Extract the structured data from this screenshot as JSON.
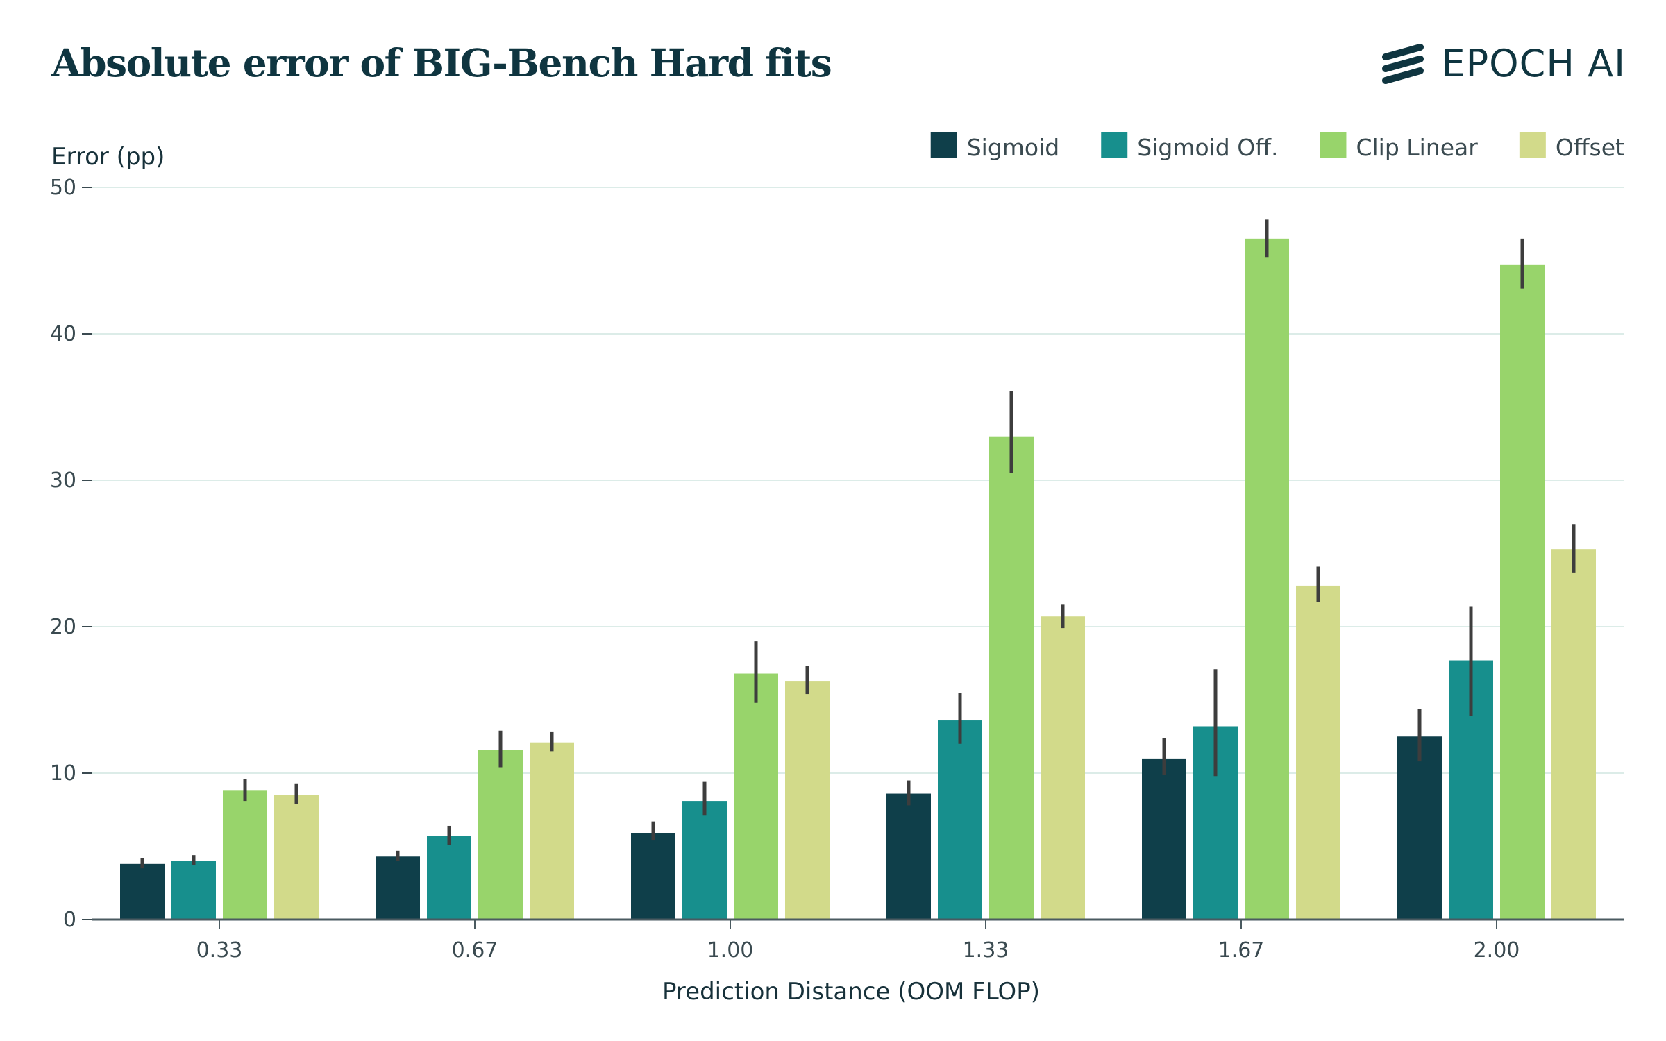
{
  "title": "Absolute error of BIG-Bench Hard fits",
  "brand": {
    "name": "EPOCH AI",
    "icon": "epoch-stripes-logo",
    "color": "#0f3540"
  },
  "chart_data": {
    "type": "bar",
    "title": "Absolute error of BIG-Bench Hard fits",
    "xlabel": "Prediction Distance (OOM FLOP)",
    "ylabel": "Error (pp)",
    "ylim": [
      0,
      50
    ],
    "yticks": [
      "0",
      "10",
      "20",
      "30",
      "40",
      "50"
    ],
    "categories": [
      "0.33",
      "0.67",
      "1.00",
      "1.33",
      "1.67",
      "2.00"
    ],
    "grid": true,
    "legend_position": "top-right",
    "series": [
      {
        "name": "Sigmoid",
        "color": "#0f3f4a",
        "values": [
          3.8,
          4.3,
          5.9,
          8.6,
          11.0,
          12.5
        ],
        "err_low": [
          3.5,
          4.0,
          5.4,
          7.8,
          9.9,
          10.8
        ],
        "err_high": [
          4.2,
          4.7,
          6.7,
          9.5,
          12.4,
          14.4
        ]
      },
      {
        "name": "Sigmoid Off.",
        "color": "#178f8d",
        "values": [
          4.0,
          5.7,
          8.1,
          13.6,
          13.2,
          17.7
        ],
        "err_low": [
          3.7,
          5.1,
          7.1,
          12.0,
          9.8,
          13.9
        ],
        "err_high": [
          4.4,
          6.4,
          9.4,
          15.5,
          17.1,
          21.4
        ]
      },
      {
        "name": "Clip Linear",
        "color": "#98d46b",
        "values": [
          8.8,
          11.6,
          16.8,
          33.0,
          46.5,
          44.7
        ],
        "err_low": [
          8.1,
          10.4,
          14.8,
          30.5,
          45.2,
          43.1
        ],
        "err_high": [
          9.6,
          12.9,
          19.0,
          36.1,
          47.8,
          46.5
        ]
      },
      {
        "name": "Offset",
        "color": "#d2da8a",
        "values": [
          8.5,
          12.1,
          16.3,
          20.7,
          22.8,
          25.3
        ],
        "err_low": [
          7.9,
          11.5,
          15.4,
          19.9,
          21.7,
          23.7
        ],
        "err_high": [
          9.3,
          12.8,
          17.3,
          21.5,
          24.1,
          27.0
        ]
      }
    ]
  }
}
